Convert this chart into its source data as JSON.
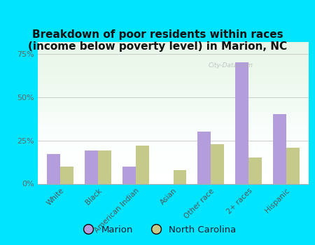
{
  "title": "Breakdown of poor residents within races\n(income below poverty level) in Marion, NC",
  "categories": [
    "White",
    "Black",
    "American Indian",
    "Asian",
    "Other race",
    "2+ races",
    "Hispanic"
  ],
  "marion_values": [
    17,
    19,
    10,
    0,
    30,
    70,
    40
  ],
  "nc_values": [
    10,
    19,
    22,
    8,
    23,
    15,
    21
  ],
  "marion_color": "#b39ddb",
  "nc_color": "#c5c98a",
  "background_color": "#00e5ff",
  "yticks": [
    0,
    25,
    50,
    75
  ],
  "ylim": [
    0,
    82
  ],
  "title_fontsize": 11,
  "legend_labels": [
    "Marion",
    "North Carolina"
  ],
  "watermark": "City-Data.com"
}
